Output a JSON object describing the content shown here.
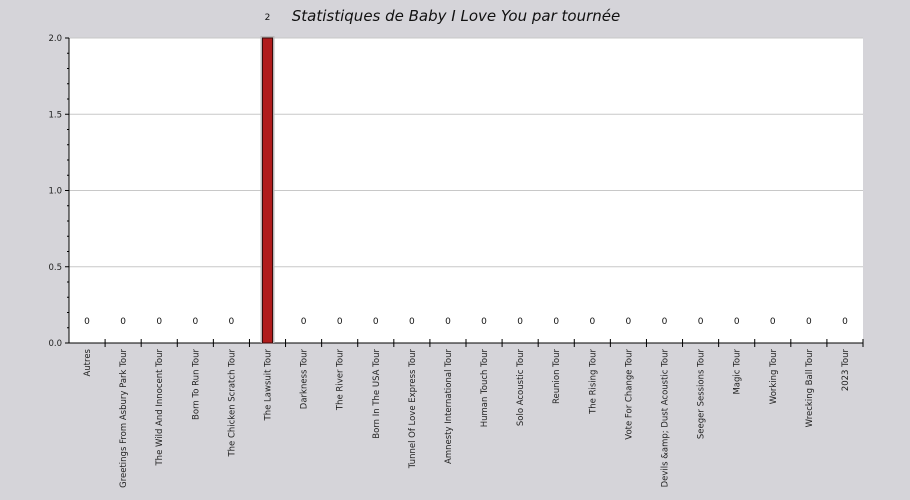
{
  "chart_data": {
    "type": "bar",
    "title": "Statistiques de Baby I Love You par tournée",
    "xlabel": "",
    "ylabel": "",
    "ylim": [
      0,
      2
    ],
    "yticks": [
      "0.0",
      "0.5",
      "1.0",
      "1.5",
      "2.0"
    ],
    "grid": true,
    "categories": [
      "Autres",
      "Greetings From Asbury Park Tour",
      "The Wild And Innocent Tour",
      "Born To Run Tour",
      "The Chicken Scratch Tour",
      "The Lawsuit Tour",
      "Darkness Tour",
      "The River Tour",
      "Born In The USA Tour",
      "Tunnel Of Love Express Tour",
      "Amnesty International Tour",
      "Human Touch Tour",
      "Solo Acoustic Tour",
      "Reunion Tour",
      "The Rising Tour",
      "Vote For Change Tour",
      "Devils &amp; Dust Acoustic Tour",
      "Seeger Sessions Tour",
      "Magic Tour",
      "Working Tour",
      "Wrecking Ball Tour",
      "2023 Tour"
    ],
    "values": [
      0,
      0,
      0,
      0,
      0,
      2,
      0,
      0,
      0,
      0,
      0,
      0,
      0,
      0,
      0,
      0,
      0,
      0,
      0,
      0,
      0,
      0
    ],
    "value_labels": [
      "0",
      "0",
      "0",
      "0",
      "0",
      "2",
      "0",
      "0",
      "0",
      "0",
      "0",
      "0",
      "0",
      "0",
      "0",
      "0",
      "0",
      "0",
      "0",
      "0",
      "0",
      "0"
    ],
    "colors": {
      "bar": "#b01c1c",
      "bar_stroke": "#3a0a0a",
      "plot_bg": "#ffffff",
      "page_bg": "#d5d4d9",
      "grid": "#c8c8c8"
    }
  }
}
